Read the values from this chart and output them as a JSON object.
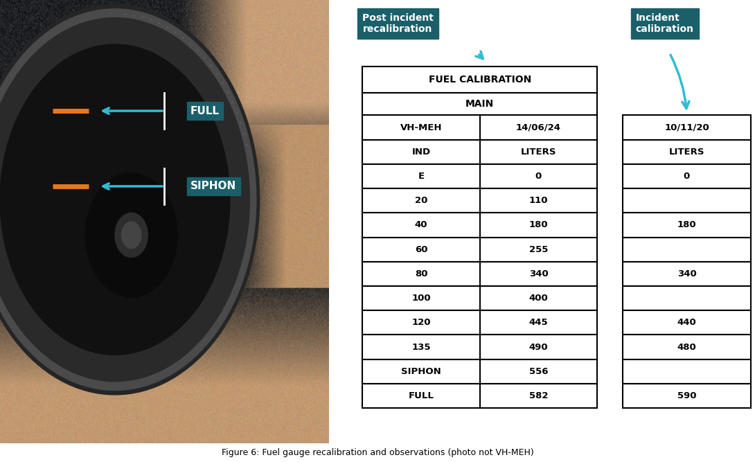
{
  "fig_width": 10.9,
  "fig_height": 6.67,
  "bg_color": "#ffffff",
  "caption": "Figure 6: Fuel gauge recalibration and observations (photo not VH-MEH)",
  "label_bg_color": "#1a5f6a",
  "label_text_color": "#ffffff",
  "arrow_color": "#30bcd4",
  "orange_color": "#e87722",
  "full_label": "FULL",
  "siphon_label": "SIPHON",
  "post_incident_label": "Post incident\nrecalibration",
  "incident_label": "Incident\ncalibration",
  "main_table_title": "FUEL CALIBRATION",
  "main_table_subtitle": "MAIN",
  "col1_header": "VH-MEH",
  "col2_header": "14/06/24",
  "col1_sub": "IND",
  "col2_sub": "LITERS",
  "incident_col_header": "10/11/20",
  "incident_col_sub": "LITERS",
  "main_rows": [
    [
      "E",
      "0"
    ],
    [
      "20",
      "110"
    ],
    [
      "40",
      "180"
    ],
    [
      "60",
      "255"
    ],
    [
      "80",
      "340"
    ],
    [
      "100",
      "400"
    ],
    [
      "120",
      "445"
    ],
    [
      "135",
      "490"
    ],
    [
      "SIPHON",
      "556"
    ],
    [
      "FULL",
      "582"
    ]
  ],
  "incident_rows": [
    "0",
    "",
    "180",
    "",
    "340",
    "",
    "440",
    "480",
    "",
    "590"
  ]
}
